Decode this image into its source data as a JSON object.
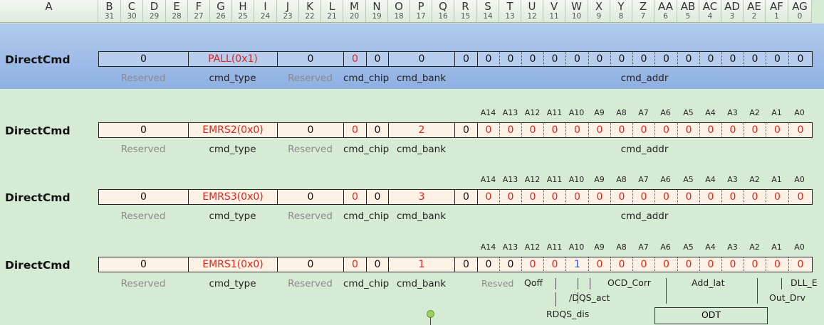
{
  "columns": [
    {
      "letter": "A",
      "bit": ""
    },
    {
      "letter": "B",
      "bit": "31"
    },
    {
      "letter": "C",
      "bit": "30"
    },
    {
      "letter": "D",
      "bit": "29"
    },
    {
      "letter": "E",
      "bit": "28"
    },
    {
      "letter": "F",
      "bit": "27"
    },
    {
      "letter": "G",
      "bit": "26"
    },
    {
      "letter": "H",
      "bit": "25"
    },
    {
      "letter": "I",
      "bit": "24"
    },
    {
      "letter": "J",
      "bit": "23"
    },
    {
      "letter": "K",
      "bit": "22"
    },
    {
      "letter": "L",
      "bit": "21"
    },
    {
      "letter": "M",
      "bit": "20"
    },
    {
      "letter": "N",
      "bit": "19"
    },
    {
      "letter": "O",
      "bit": "18"
    },
    {
      "letter": "P",
      "bit": "17"
    },
    {
      "letter": "Q",
      "bit": "16"
    },
    {
      "letter": "R",
      "bit": "15"
    },
    {
      "letter": "S",
      "bit": "14"
    },
    {
      "letter": "T",
      "bit": "13"
    },
    {
      "letter": "U",
      "bit": "12"
    },
    {
      "letter": "V",
      "bit": "11"
    },
    {
      "letter": "W",
      "bit": "10"
    },
    {
      "letter": "X",
      "bit": "9"
    },
    {
      "letter": "Y",
      "bit": "8"
    },
    {
      "letter": "Z",
      "bit": "7"
    },
    {
      "letter": "AA",
      "bit": "6"
    },
    {
      "letter": "AB",
      "bit": "5"
    },
    {
      "letter": "AC",
      "bit": "4"
    },
    {
      "letter": "AD",
      "bit": "3"
    },
    {
      "letter": "AE",
      "bit": "2"
    },
    {
      "letter": "AF",
      "bit": "1"
    },
    {
      "letter": "AG",
      "bit": "0"
    }
  ],
  "field_labels": [
    "Reserved",
    "cmd_type",
    "Reserved",
    "cmd_chip",
    "cmd_bank",
    "cmd_addr"
  ],
  "addr_bits": [
    "A14",
    "A13",
    "A12",
    "A11",
    "A10",
    "A9",
    "A8",
    "A7",
    "A6",
    "A5",
    "A4",
    "A3",
    "A2",
    "A1",
    "A0"
  ],
  "rows": [
    {
      "title": "DirectCmd",
      "reserved_hi": "0",
      "cmd_type": "PALL(0x1)",
      "reserved_lo": "0",
      "chip": [
        "0",
        "0"
      ],
      "bank": "0",
      "bit15": "0",
      "addr": [
        "0",
        "0",
        "0",
        "0",
        "0",
        "0",
        "0",
        "0",
        "0",
        "0",
        "0",
        "0",
        "0",
        "0",
        "0"
      ],
      "show_addr_bits": false,
      "highlight": true
    },
    {
      "title": "DirectCmd",
      "reserved_hi": "0",
      "cmd_type": "EMRS2(0x0)",
      "reserved_lo": "0",
      "chip": [
        "0",
        "0"
      ],
      "bank": "2",
      "bit15": "0",
      "addr": [
        "0",
        "0",
        "0",
        "0",
        "0",
        "0",
        "0",
        "0",
        "0",
        "0",
        "0",
        "0",
        "0",
        "0",
        "0"
      ],
      "show_addr_bits": true,
      "highlight": false
    },
    {
      "title": "DirectCmd",
      "reserved_hi": "0",
      "cmd_type": "EMRS3(0x0)",
      "reserved_lo": "0",
      "chip": [
        "0",
        "0"
      ],
      "bank": "3",
      "bit15": "0",
      "addr": [
        "0",
        "0",
        "0",
        "0",
        "0",
        "0",
        "0",
        "0",
        "0",
        "0",
        "0",
        "0",
        "0",
        "0",
        "0"
      ],
      "show_addr_bits": true,
      "highlight": false
    },
    {
      "title": "DirectCmd",
      "reserved_hi": "0",
      "cmd_type": "EMRS1(0x0)",
      "reserved_lo": "0",
      "chip": [
        "0",
        "0"
      ],
      "bank": "1",
      "bit15": "0",
      "addr": [
        "0",
        "0",
        "0",
        "0",
        "1",
        "0",
        "0",
        "0",
        "0",
        "0",
        "0",
        "0",
        "0",
        "0",
        "0"
      ],
      "show_addr_bits": true,
      "highlight": false
    }
  ],
  "emrs1_notes": {
    "resved": "Resved",
    "qoff": "Qoff",
    "ocd": "OCD_Corr",
    "add_lat": "Add_lat",
    "dll": "DLL_E",
    "dqs": "/DQS_act",
    "out_drv": "Out_Drv",
    "rdqs": "RDQS_dis",
    "odt": "ODT"
  },
  "colors": {
    "red": "#e0241c",
    "blue": "#3355cc",
    "highlight": "#a9c4ea",
    "background": "#d6ebd3",
    "cell": "#fbf1e4"
  }
}
